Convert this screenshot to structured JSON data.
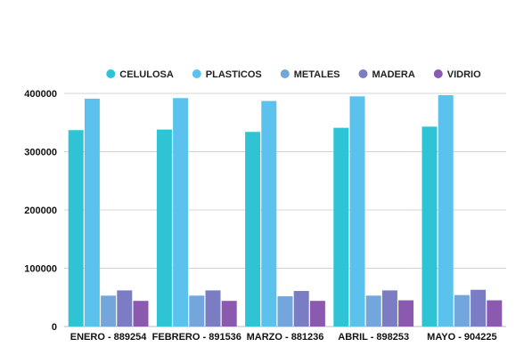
{
  "chart_data": {
    "type": "bar",
    "title": "",
    "xlabel": "",
    "ylabel": "",
    "categories": [
      "ENERO - 889254",
      "FEBRERO - 891536",
      "MARZO - 881236",
      "ABRIL - 898253",
      "MAYO - 904225"
    ],
    "series": [
      {
        "name": "CELULOSA",
        "color": "#2ec4d6",
        "values": [
          337000,
          338000,
          334000,
          341000,
          343000
        ]
      },
      {
        "name": "PLASTICOS",
        "color": "#5bc2ee",
        "values": [
          391000,
          392000,
          387000,
          395000,
          397000
        ]
      },
      {
        "name": "METALES",
        "color": "#72a6dc",
        "values": [
          53000,
          53000,
          52000,
          53000,
          54000
        ]
      },
      {
        "name": "MADERA",
        "color": "#7a7cc4",
        "values": [
          62000,
          62000,
          61000,
          62000,
          63000
        ]
      },
      {
        "name": "VIDRIO",
        "color": "#8b5ab0",
        "values": [
          44000,
          44000,
          44000,
          45000,
          45000
        ]
      }
    ],
    "ylim": [
      0,
      400000
    ],
    "yticks": [
      0,
      100000,
      200000,
      300000,
      400000
    ],
    "ytick_labels": [
      "0",
      "100000",
      "200000",
      "300000",
      "400000"
    ],
    "grid": true,
    "legend_position": "top-center"
  }
}
